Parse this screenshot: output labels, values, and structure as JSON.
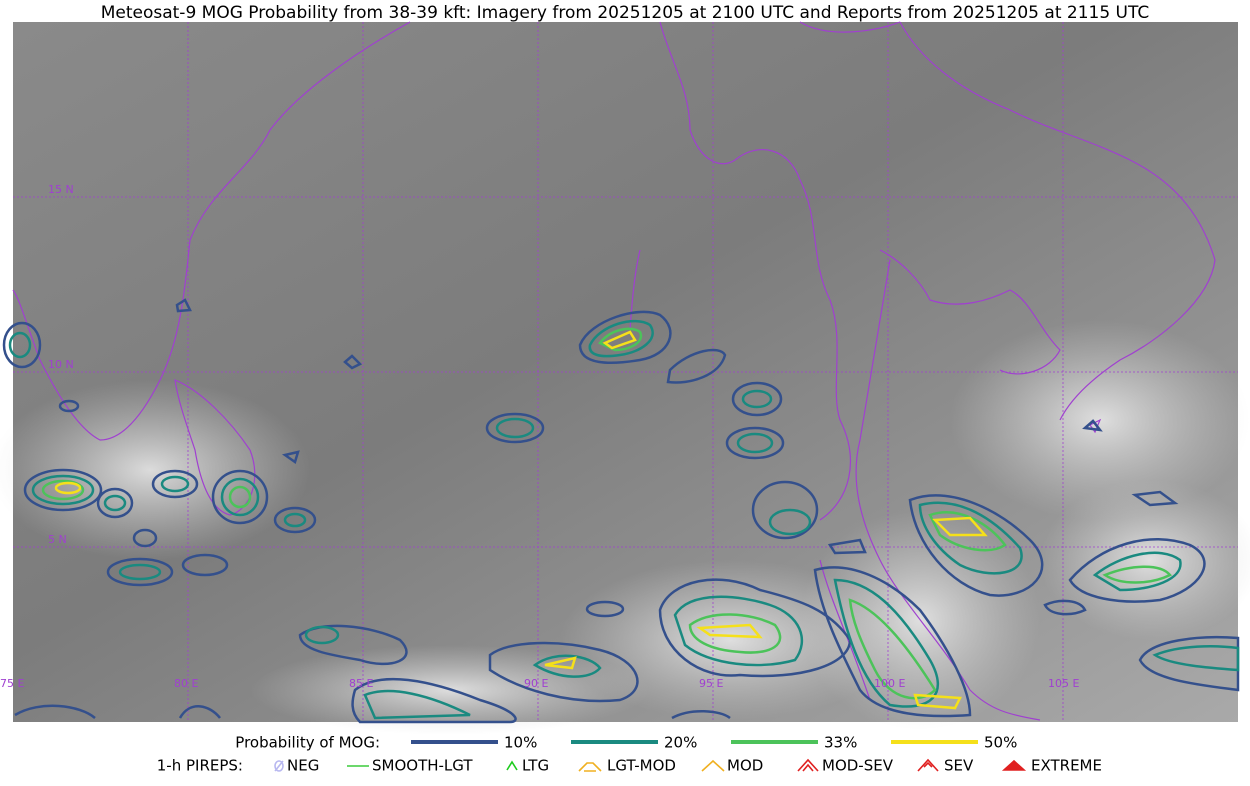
{
  "title": "Meteosat-9 MOG Probability from 38-39 kft: Imagery from 20251205 at 2100 UTC and Reports from 20251205 at 2115 UTC",
  "map": {
    "lat_labels": [
      "15 N",
      "10 N",
      "5 N"
    ],
    "lon_labels": [
      "75 E",
      "80 E",
      "85 E",
      "90 E",
      "95 E",
      "100 E",
      "105 E"
    ]
  },
  "legend": {
    "probability_label": "Probability of MOG:",
    "probability_levels": [
      {
        "label": "10%",
        "color": "#34508c"
      },
      {
        "label": "20%",
        "color": "#1a8a80"
      },
      {
        "label": "33%",
        "color": "#4cc35a"
      },
      {
        "label": "50%",
        "color": "#f5e01a"
      }
    ],
    "pireps_label": "1-h PIREPS:",
    "pireps": [
      {
        "label": "NEG",
        "color": "#b8b8f0"
      },
      {
        "label": "SMOOTH-LGT",
        "color": "#3ccc3c"
      },
      {
        "label": "LTG",
        "color": "#1ecc1e"
      },
      {
        "label": "LGT-MOD",
        "color": "#f0b020"
      },
      {
        "label": "MOD",
        "color": "#f0b020"
      },
      {
        "label": "MOD-SEV",
        "color": "#e02020"
      },
      {
        "label": "SEV",
        "color": "#e02020"
      },
      {
        "label": "EXTREME",
        "color": "#e02020"
      }
    ]
  }
}
